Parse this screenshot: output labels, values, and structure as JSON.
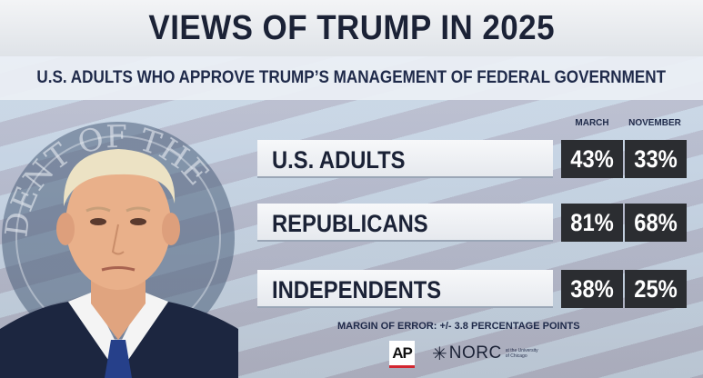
{
  "title": "VIEWS OF TRUMP IN 2025",
  "subtitle": "U.S. ADULTS WHO APPROVE TRUMP’S MANAGEMENT OF FEDERAL GOVERNMENT",
  "colors": {
    "value_box": "#2b2d31",
    "title_text": "#1b2236",
    "ap_red": "#d22630"
  },
  "chart_data": {
    "type": "table",
    "title": "VIEWS OF TRUMP IN 2025",
    "subtitle": "U.S. ADULTS WHO APPROVE TRUMP’S MANAGEMENT OF FEDERAL GOVERNMENT",
    "columns": [
      "MARCH",
      "NOVEMBER"
    ],
    "rows": [
      {
        "label": "U.S. ADULTS",
        "values": [
          "43%",
          "33%"
        ]
      },
      {
        "label": "REPUBLICANS",
        "values": [
          "81%",
          "68%"
        ]
      },
      {
        "label": "INDEPENDENTS",
        "values": [
          "38%",
          "25%"
        ]
      }
    ],
    "series": [
      {
        "name": "MARCH",
        "values": [
          43,
          81,
          38
        ]
      },
      {
        "name": "NOVEMBER",
        "values": [
          33,
          68,
          25
        ]
      }
    ],
    "categories": [
      "U.S. ADULTS",
      "REPUBLICANS",
      "INDEPENDENTS"
    ],
    "unit": "%"
  },
  "footer": {
    "margin_of_error": "MARGIN OF ERROR: +/- 3.8 PERCENTAGE POINTS",
    "logos": [
      {
        "name": "ap-logo",
        "text": "AP"
      },
      {
        "name": "norc-logo",
        "text": "NORC",
        "subtext": "at the University of Chicago"
      }
    ]
  },
  "seal_text": "DENT OF THE"
}
